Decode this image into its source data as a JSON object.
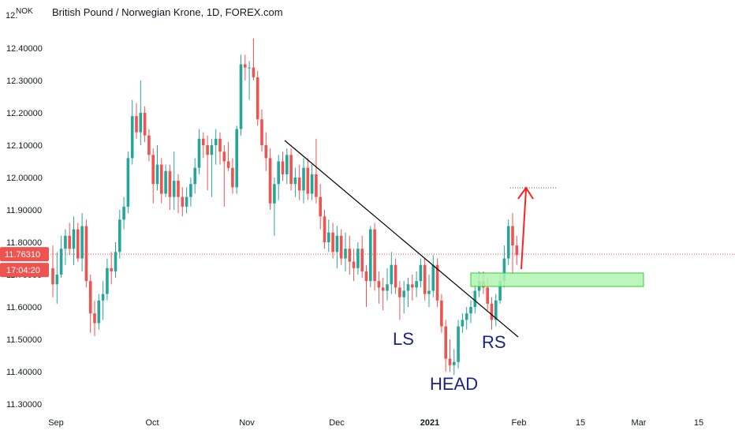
{
  "chart_data": {
    "type": "candlestick",
    "title": "British Pound / Norwegian Krone, 1D, FOREX.com",
    "currency": "NOK",
    "y_ticks": [
      "12.40000",
      "12.30000",
      "12.20000",
      "12.10000",
      "12.00000",
      "11.90000",
      "11.80000",
      "11.70000",
      "11.60000",
      "11.50000",
      "11.40000",
      "11.30000"
    ],
    "y_tick_values": [
      12.4,
      12.3,
      12.2,
      12.1,
      12.0,
      11.9,
      11.8,
      11.7,
      11.6,
      11.5,
      11.4,
      11.3
    ],
    "y_top_partial": "12.",
    "ylim": [
      11.27,
      12.53
    ],
    "x_ticks": [
      "Sep",
      "Oct",
      "Nov",
      "Dec",
      "2021",
      "Feb",
      "15",
      "Mar",
      "15"
    ],
    "current_price": "11.76310",
    "current_price_value": 11.7631,
    "countdown": "17:04:20",
    "colors": {
      "up": "#26a69a",
      "down": "#ef5350",
      "price_line": "#ef5350",
      "zone": "#b2f5b2",
      "zone_border": "#33cc33",
      "arrow": "#ff2020",
      "trendline": "#000000"
    },
    "candles": [
      [
        11.72,
        11.79,
        11.63,
        11.67
      ],
      [
        11.67,
        11.77,
        11.61,
        11.7
      ],
      [
        11.7,
        11.82,
        11.69,
        11.78
      ],
      [
        11.78,
        11.84,
        11.73,
        11.82
      ],
      [
        11.82,
        11.86,
        11.76,
        11.78
      ],
      [
        11.78,
        11.88,
        11.73,
        11.84
      ],
      [
        11.84,
        11.86,
        11.74,
        11.75
      ],
      [
        11.75,
        11.89,
        11.71,
        11.85
      ],
      [
        11.85,
        11.87,
        11.66,
        11.68
      ],
      [
        11.68,
        11.7,
        11.52,
        11.58
      ],
      [
        11.58,
        11.62,
        11.51,
        11.55
      ],
      [
        11.55,
        11.64,
        11.53,
        11.62
      ],
      [
        11.62,
        11.68,
        11.56,
        11.64
      ],
      [
        11.64,
        11.75,
        11.62,
        11.72
      ],
      [
        11.72,
        11.77,
        11.67,
        11.71
      ],
      [
        11.71,
        11.8,
        11.69,
        11.77
      ],
      [
        11.77,
        11.9,
        11.75,
        11.87
      ],
      [
        11.87,
        11.94,
        11.84,
        11.91
      ],
      [
        11.91,
        12.08,
        11.89,
        12.06
      ],
      [
        12.06,
        12.24,
        12.04,
        12.19
      ],
      [
        12.19,
        12.23,
        12.12,
        12.14
      ],
      [
        12.14,
        12.3,
        12.1,
        12.2
      ],
      [
        12.2,
        12.22,
        12.11,
        12.13
      ],
      [
        12.13,
        12.15,
        12.05,
        12.07
      ],
      [
        12.07,
        12.09,
        11.92,
        11.98
      ],
      [
        11.98,
        12.1,
        11.96,
        12.04
      ],
      [
        12.04,
        12.06,
        11.92,
        11.95
      ],
      [
        11.95,
        12.04,
        11.94,
        12.02
      ],
      [
        12.02,
        12.04,
        11.9,
        11.94
      ],
      [
        11.94,
        12.08,
        11.9,
        11.99
      ],
      [
        11.99,
        12.01,
        11.89,
        11.94
      ],
      [
        11.94,
        11.97,
        11.88,
        11.91
      ],
      [
        11.91,
        11.97,
        11.89,
        11.94
      ],
      [
        11.94,
        12.0,
        11.91,
        11.98
      ],
      [
        11.98,
        12.06,
        11.95,
        12.03
      ],
      [
        12.03,
        12.15,
        12.01,
        12.12
      ],
      [
        12.12,
        12.14,
        12.06,
        12.1
      ],
      [
        12.1,
        12.13,
        11.96,
        12.07
      ],
      [
        12.07,
        12.12,
        11.94,
        12.1
      ],
      [
        12.1,
        12.15,
        12.04,
        12.12
      ],
      [
        12.12,
        12.14,
        12.04,
        12.08
      ],
      [
        12.08,
        12.1,
        11.91,
        12.05
      ],
      [
        12.05,
        12.11,
        12.02,
        12.03
      ],
      [
        12.03,
        12.06,
        11.95,
        11.97
      ],
      [
        11.97,
        12.16,
        11.95,
        12.15
      ],
      [
        12.15,
        12.38,
        12.13,
        12.35
      ],
      [
        12.35,
        12.38,
        12.3,
        12.34
      ],
      [
        12.34,
        12.36,
        12.24,
        12.34
      ],
      [
        12.34,
        12.43,
        12.3,
        12.31
      ],
      [
        12.31,
        12.33,
        12.16,
        12.18
      ],
      [
        12.18,
        12.21,
        12.08,
        12.1
      ],
      [
        12.1,
        12.14,
        12.02,
        12.06
      ],
      [
        12.06,
        12.09,
        11.9,
        11.92
      ],
      [
        11.92,
        12.0,
        11.82,
        11.98
      ],
      [
        11.98,
        12.07,
        11.93,
        12.05
      ],
      [
        12.05,
        12.08,
        11.99,
        12.01
      ],
      [
        12.01,
        12.09,
        11.98,
        12.07
      ],
      [
        12.07,
        12.09,
        11.96,
        11.98
      ],
      [
        11.98,
        12.03,
        11.94,
        12.0
      ],
      [
        12.0,
        12.04,
        11.93,
        11.96
      ],
      [
        11.96,
        12.06,
        11.92,
        12.03
      ],
      [
        12.03,
        12.06,
        11.93,
        11.95
      ],
      [
        11.95,
        12.04,
        11.93,
        12.01
      ],
      [
        12.01,
        12.12,
        11.92,
        11.94
      ],
      [
        11.94,
        11.98,
        11.84,
        11.88
      ],
      [
        11.88,
        11.9,
        11.78,
        11.8
      ],
      [
        11.8,
        11.87,
        11.77,
        11.83
      ],
      [
        11.83,
        11.86,
        11.75,
        11.77
      ],
      [
        11.77,
        11.85,
        11.72,
        11.82
      ],
      [
        11.82,
        11.84,
        11.73,
        11.75
      ],
      [
        11.75,
        11.83,
        11.71,
        11.78
      ],
      [
        11.78,
        11.82,
        11.7,
        11.74
      ],
      [
        11.74,
        11.78,
        11.68,
        11.72
      ],
      [
        11.72,
        11.8,
        11.7,
        11.78
      ],
      [
        11.78,
        11.82,
        11.69,
        11.71
      ],
      [
        11.71,
        11.73,
        11.6,
        11.68
      ],
      [
        11.68,
        11.85,
        11.66,
        11.84
      ],
      [
        11.84,
        11.86,
        11.65,
        11.68
      ],
      [
        11.68,
        11.71,
        11.61,
        11.66
      ],
      [
        11.66,
        11.69,
        11.59,
        11.65
      ],
      [
        11.65,
        11.72,
        11.62,
        11.67
      ],
      [
        11.67,
        11.77,
        11.64,
        11.73
      ],
      [
        11.73,
        11.75,
        11.64,
        11.66
      ],
      [
        11.66,
        11.68,
        11.56,
        11.63
      ],
      [
        11.63,
        11.68,
        11.58,
        11.65
      ],
      [
        11.65,
        11.69,
        11.6,
        11.67
      ],
      [
        11.67,
        11.7,
        11.62,
        11.66
      ],
      [
        11.66,
        11.71,
        11.63,
        11.68
      ],
      [
        11.68,
        11.75,
        11.66,
        11.73
      ],
      [
        11.73,
        11.75,
        11.62,
        11.64
      ],
      [
        11.64,
        11.7,
        11.6,
        11.65
      ],
      [
        11.65,
        11.76,
        11.63,
        11.73
      ],
      [
        11.73,
        11.75,
        11.6,
        11.62
      ],
      [
        11.62,
        11.64,
        11.52,
        11.54
      ],
      [
        11.54,
        11.56,
        11.4,
        11.44
      ],
      [
        11.44,
        11.5,
        11.4,
        11.42
      ],
      [
        11.42,
        11.47,
        11.39,
        11.43
      ],
      [
        11.43,
        11.56,
        11.41,
        11.54
      ],
      [
        11.54,
        11.58,
        11.52,
        11.56
      ],
      [
        11.56,
        11.6,
        11.53,
        11.58
      ],
      [
        11.58,
        11.62,
        11.55,
        11.6
      ],
      [
        11.6,
        11.67,
        11.58,
        11.65
      ],
      [
        11.65,
        11.71,
        11.63,
        11.68
      ],
      [
        11.68,
        11.71,
        11.64,
        11.66
      ],
      [
        11.66,
        11.69,
        11.59,
        11.61
      ],
      [
        11.61,
        11.63,
        11.53,
        11.56
      ],
      [
        11.56,
        11.64,
        11.54,
        11.62
      ],
      [
        11.62,
        11.7,
        11.61,
        11.68
      ],
      [
        11.68,
        11.79,
        11.66,
        11.75
      ],
      [
        11.75,
        11.87,
        11.73,
        11.85
      ],
      [
        11.85,
        11.89,
        11.7,
        11.79
      ],
      [
        11.79,
        11.82,
        11.73,
        11.76
      ]
    ]
  },
  "annotations": {
    "ls": "LS",
    "head": "HEAD",
    "rs": "RS"
  }
}
